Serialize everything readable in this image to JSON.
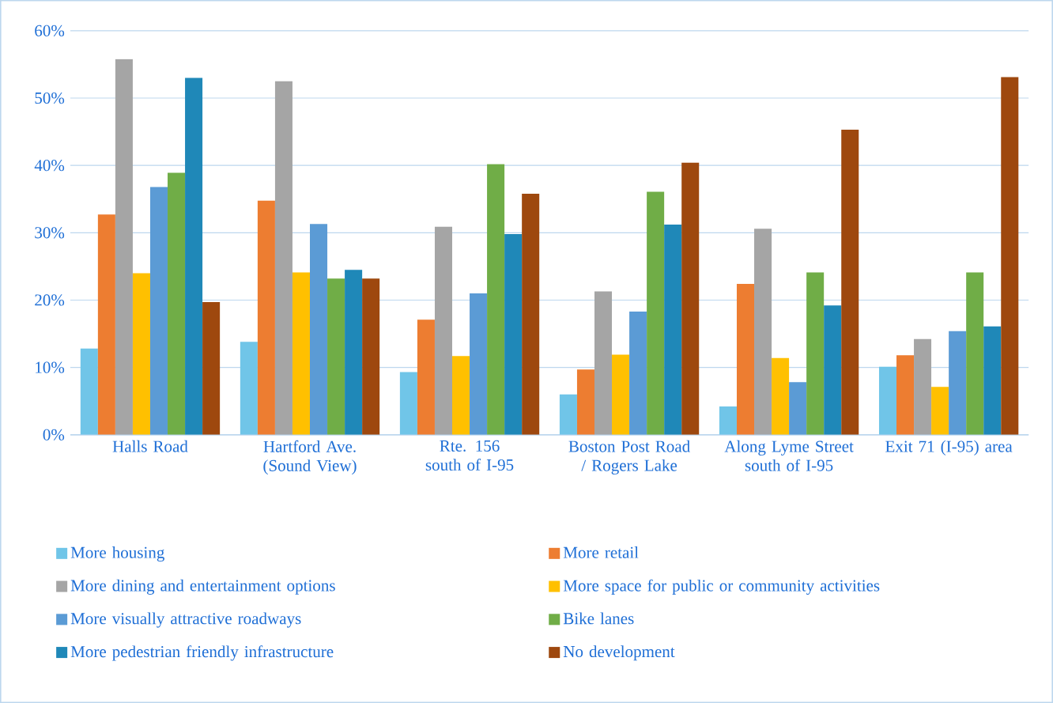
{
  "chart_data": {
    "type": "bar",
    "categories": [
      "Halls Road",
      "Hartford Ave. (Sound View)",
      "Rte. 156 south of I-95",
      "Boston Post Road / Rogers Lake",
      "Along Lyme Street south of I-95",
      "Exit 71 (I-95) area"
    ],
    "series": [
      {
        "name": "More housing",
        "color": "#70c5e8",
        "values": [
          12.8,
          13.8,
          9.3,
          6.0,
          4.2,
          10.1
        ]
      },
      {
        "name": "More retail",
        "color": "#ed7d31",
        "values": [
          32.7,
          34.8,
          17.1,
          9.7,
          22.4,
          11.8
        ]
      },
      {
        "name": "More dining and entertainment options",
        "color": "#a5a5a5",
        "values": [
          55.8,
          52.5,
          30.9,
          21.3,
          30.6,
          14.2
        ]
      },
      {
        "name": "More space for public or community activities",
        "color": "#ffc000",
        "values": [
          24.0,
          24.1,
          11.7,
          11.9,
          11.4,
          7.1
        ]
      },
      {
        "name": "More visually attractive roadways",
        "color": "#5b9bd5",
        "values": [
          36.8,
          31.3,
          21.0,
          18.3,
          7.8,
          15.4
        ]
      },
      {
        "name": "Bike lanes",
        "color": "#70ad47",
        "values": [
          38.9,
          23.2,
          40.2,
          36.1,
          24.1,
          24.1
        ]
      },
      {
        "name": "More pedestrian friendly infrastructure",
        "color": "#1f88b8",
        "values": [
          53.0,
          24.5,
          29.8,
          31.2,
          19.2,
          16.1
        ]
      },
      {
        "name": "No development",
        "color": "#9e480e",
        "values": [
          19.7,
          23.2,
          35.8,
          40.4,
          45.3,
          53.1
        ]
      }
    ],
    "ylim": [
      0,
      60
    ],
    "yticks": [
      {
        "value": 0,
        "label": "0%"
      },
      {
        "value": 10,
        "label": "10%"
      },
      {
        "value": 20,
        "label": "20%"
      },
      {
        "value": 30,
        "label": "30%"
      },
      {
        "value": 40,
        "label": "40%"
      },
      {
        "value": 50,
        "label": "50%"
      },
      {
        "value": 60,
        "label": "60%"
      }
    ],
    "grid": "y",
    "legend": "bottom"
  }
}
